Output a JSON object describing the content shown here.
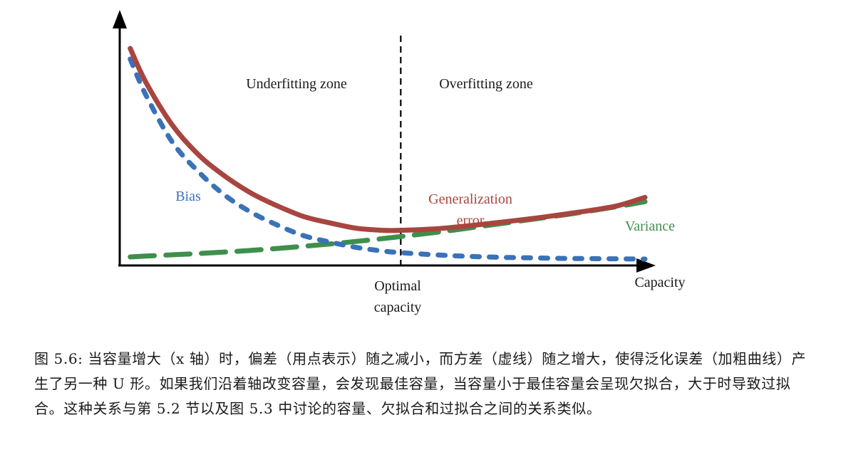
{
  "chart_data": {
    "type": "line",
    "title": "",
    "xlabel": "Capacity",
    "ylabel": "",
    "x_tick_labels": [],
    "y_tick_labels": [],
    "zones": {
      "left": "Underfitting zone",
      "right": "Overfitting zone"
    },
    "optimal_marker": {
      "label_line1": "Optimal",
      "label_line2": "capacity",
      "x": 0.535
    },
    "grid": false,
    "legend": "none (series labeled inline)",
    "x": [
      0.02,
      0.05,
      0.1,
      0.15,
      0.2,
      0.25,
      0.3,
      0.35,
      0.4,
      0.45,
      0.5,
      0.535,
      0.6,
      0.65,
      0.7,
      0.75,
      0.8,
      0.85,
      0.9,
      0.95,
      1.0
    ],
    "series": [
      {
        "name": "Generalization error",
        "label_line1": "Generalization",
        "label_line2": "error",
        "color": "#a8453f",
        "style": "solid-thick",
        "values": [
          1.0,
          0.84,
          0.64,
          0.5,
          0.4,
          0.32,
          0.26,
          0.21,
          0.18,
          0.155,
          0.145,
          0.145,
          0.152,
          0.163,
          0.176,
          0.19,
          0.205,
          0.222,
          0.24,
          0.262,
          0.3
        ]
      },
      {
        "name": "Bias",
        "color": "#3a72b8",
        "style": "dotted",
        "values": [
          0.95,
          0.78,
          0.56,
          0.42,
          0.31,
          0.23,
          0.17,
          0.12,
          0.09,
          0.065,
          0.048,
          0.04,
          0.03,
          0.024,
          0.02,
          0.017,
          0.015,
          0.013,
          0.012,
          0.011,
          0.01
        ]
      },
      {
        "name": "Variance",
        "color": "#3f8f4c",
        "style": "dashed",
        "values": [
          0.02,
          0.024,
          0.03,
          0.036,
          0.043,
          0.051,
          0.06,
          0.07,
          0.081,
          0.093,
          0.106,
          0.116,
          0.135,
          0.151,
          0.168,
          0.185,
          0.202,
          0.219,
          0.238,
          0.258,
          0.28
        ]
      }
    ],
    "ylim": [
      0,
      1.0
    ],
    "xlim": [
      0,
      1.0
    ]
  },
  "caption": "图 5.6: 当容量增大（x 轴）时，偏差（用点表示）随之减小，而方差（虚线）随之增大，使得泛化误差（加粗曲线）产生了另一种 U 形。如果我们沿着轴改变容量，会发现最佳容量，当容量小于最佳容量会呈现欠拟合，大于时导致过拟合。这种关系与第 5.2 节以及图 5.3 中讨论的容量、欠拟合和过拟合之间的关系类似。"
}
